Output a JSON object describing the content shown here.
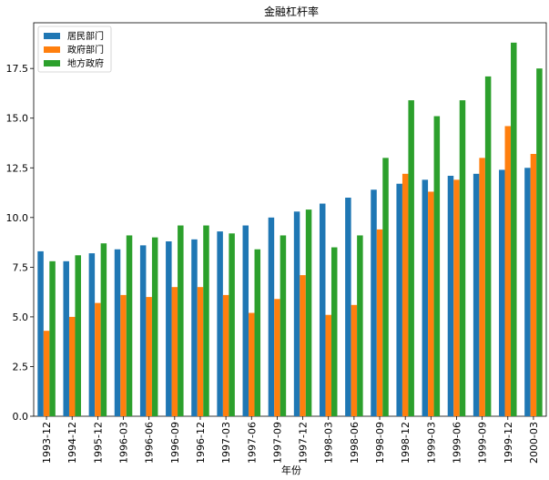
{
  "chart_data": {
    "type": "bar",
    "title": "金融杠杆率",
    "xlabel": "年份",
    "ylabel": "",
    "ylim": [
      0,
      19.8
    ],
    "yticks": [
      0.0,
      2.5,
      5.0,
      7.5,
      10.0,
      12.5,
      15.0,
      17.5
    ],
    "ytick_labels": [
      "0.0",
      "2.5",
      "5.0",
      "7.5",
      "10.0",
      "12.5",
      "15.0",
      "17.5"
    ],
    "grid": false,
    "legend_position": "top-left",
    "categories": [
      "1993-12",
      "1994-12",
      "1995-12",
      "1996-03",
      "1996-06",
      "1996-09",
      "1996-12",
      "1997-03",
      "1997-06",
      "1997-09",
      "1997-12",
      "1998-03",
      "1998-06",
      "1998-09",
      "1998-12",
      "1999-03",
      "1999-06",
      "1999-09",
      "1999-12",
      "2000-03"
    ],
    "series": [
      {
        "name": "居民部门",
        "color": "#1f77b4",
        "values": [
          8.3,
          7.8,
          8.2,
          8.4,
          8.6,
          8.8,
          8.9,
          9.3,
          9.6,
          10.0,
          10.3,
          10.7,
          11.0,
          11.4,
          11.7,
          11.9,
          12.1,
          12.2,
          12.4,
          12.5
        ]
      },
      {
        "name": "政府部门",
        "color": "#ff7f0e",
        "values": [
          4.3,
          5.0,
          5.7,
          6.1,
          6.0,
          6.5,
          6.5,
          6.1,
          5.2,
          5.9,
          7.1,
          5.1,
          5.6,
          9.4,
          12.2,
          11.3,
          11.9,
          13.0,
          14.6,
          13.2
        ]
      },
      {
        "name": "地方政府",
        "color": "#2ca02c",
        "values": [
          7.8,
          8.1,
          8.7,
          9.1,
          9.0,
          9.6,
          9.6,
          9.2,
          8.4,
          9.1,
          10.4,
          8.5,
          9.1,
          13.0,
          15.9,
          15.1,
          15.9,
          17.1,
          18.8,
          17.5
        ]
      }
    ]
  }
}
